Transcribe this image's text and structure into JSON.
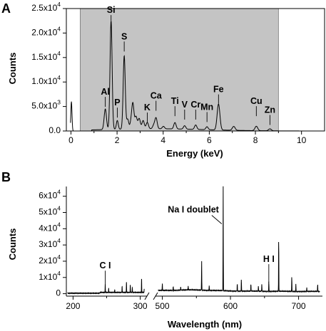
{
  "chart_data": [
    {
      "type": "line",
      "panel_label": "A",
      "xlabel": "Energy (keV)",
      "ylabel": "Counts",
      "xlim": [
        -0.2,
        11
      ],
      "ylim": [
        0,
        25000
      ],
      "x_ticks": [
        0,
        2,
        4,
        6,
        8,
        10
      ],
      "y_ticks": [
        {
          "value": 0,
          "label": "0.0"
        },
        {
          "value": 5000,
          "label": "5.0x10",
          "exp": "3"
        },
        {
          "value": 10000,
          "label": "1.0x10",
          "exp": "4"
        },
        {
          "value": 15000,
          "label": "1.5x10",
          "exp": "4"
        },
        {
          "value": 20000,
          "label": "2.0x10",
          "exp": "4"
        },
        {
          "value": 25000,
          "label": "2.5x10",
          "exp": "4"
        }
      ],
      "shaded_region": {
        "x0": 0.4,
        "x1": 9.0,
        "color": "#c4c4c4"
      },
      "grid": false,
      "peaks": [
        {
          "x": 0.02,
          "y": 6000,
          "w": 0.025,
          "label": ""
        },
        {
          "x": 1.49,
          "y": 4200,
          "w": 0.05,
          "label": "Al",
          "label_y": 7400
        },
        {
          "x": 1.74,
          "y": 22200,
          "w": 0.045,
          "label": "Si",
          "label_y": 24100
        },
        {
          "x": 2.01,
          "y": 1800,
          "w": 0.04,
          "label": "P",
          "label_y": 5200
        },
        {
          "x": 2.31,
          "y": 15000,
          "w": 0.045,
          "label": "S",
          "label_y": 18700
        },
        {
          "x": 2.46,
          "y": 2000,
          "w": 0.045,
          "label": ""
        },
        {
          "x": 2.62,
          "y": 1800,
          "w": 0.05,
          "label": ""
        },
        {
          "x": 2.69,
          "y": 4600,
          "w": 0.045,
          "label": ""
        },
        {
          "x": 2.82,
          "y": 2500,
          "w": 0.05,
          "label": ""
        },
        {
          "x": 2.96,
          "y": 2100,
          "w": 0.05,
          "label": ""
        },
        {
          "x": 3.13,
          "y": 1700,
          "w": 0.05,
          "label": ""
        },
        {
          "x": 3.31,
          "y": 1300,
          "w": 0.05,
          "label": "K",
          "label_y": 4200
        },
        {
          "x": 3.59,
          "y": 700,
          "w": 0.05,
          "label": ""
        },
        {
          "x": 3.69,
          "y": 2200,
          "w": 0.05,
          "label": "Ca",
          "label_y": 6600
        },
        {
          "x": 4.01,
          "y": 500,
          "w": 0.05,
          "label": ""
        },
        {
          "x": 4.51,
          "y": 1300,
          "w": 0.05,
          "label": "Ti",
          "label_y": 5500
        },
        {
          "x": 4.93,
          "y": 700,
          "w": 0.05,
          "label": "V",
          "label_y": 4800
        },
        {
          "x": 5.41,
          "y": 900,
          "w": 0.05,
          "label": "Cr",
          "label_y": 4800
        },
        {
          "x": 5.9,
          "y": 600,
          "w": 0.05,
          "label": "Mn",
          "label_y": 4300
        },
        {
          "x": 6.4,
          "y": 5300,
          "w": 0.06,
          "label": "Fe",
          "label_y": 7900
        },
        {
          "x": 7.06,
          "y": 800,
          "w": 0.06,
          "label": ""
        },
        {
          "x": 8.04,
          "y": 900,
          "w": 0.06,
          "label": "Cu",
          "label_y": 5500
        },
        {
          "x": 8.63,
          "y": 400,
          "w": 0.06,
          "label": "Zn",
          "label_y": 3700
        }
      ]
    },
    {
      "type": "line",
      "panel_label": "B",
      "xlabel": "Wavelength (nm)",
      "ylabel": "Counts",
      "broken_x_axis": true,
      "segment_left": {
        "xlim": [
          190,
          310
        ],
        "x_ticks": [
          200,
          300
        ]
      },
      "segment_right": {
        "xlim": [
          490,
          735
        ],
        "x_ticks": [
          500,
          600,
          700
        ]
      },
      "ylim": [
        -1500,
        66000
      ],
      "y_ticks": [
        {
          "value": 0,
          "label": "0"
        },
        {
          "value": 10000,
          "label": "1x10",
          "exp": "4"
        },
        {
          "value": 20000,
          "label": "2x10",
          "exp": "4"
        },
        {
          "value": 30000,
          "label": "3x10",
          "exp": "4"
        },
        {
          "value": 40000,
          "label": "4x10",
          "exp": "4"
        },
        {
          "value": 50000,
          "label": "5x10",
          "exp": "4"
        },
        {
          "value": 60000,
          "label": "6x10",
          "exp": "4"
        }
      ],
      "grid": false,
      "lines": [
        {
          "x": 247.9,
          "y": 5200,
          "label": "C I",
          "label_y": 15500
        },
        {
          "x": 253.0,
          "y": 2500,
          "label": ""
        },
        {
          "x": 262.0,
          "y": 1800,
          "label": ""
        },
        {
          "x": 273.0,
          "y": 3500,
          "label": ""
        },
        {
          "x": 279.5,
          "y": 6500,
          "label": ""
        },
        {
          "x": 285.2,
          "y": 4500,
          "label": ""
        },
        {
          "x": 288.2,
          "y": 3200,
          "label": ""
        },
        {
          "x": 302.0,
          "y": 8500,
          "label": ""
        },
        {
          "x": 306.0,
          "y": 2200,
          "label": ""
        },
        {
          "x": 500.0,
          "y": 4500,
          "label": ""
        },
        {
          "x": 516.0,
          "y": 2500,
          "label": ""
        },
        {
          "x": 527.0,
          "y": 2000,
          "label": ""
        },
        {
          "x": 538.0,
          "y": 2500,
          "label": ""
        },
        {
          "x": 557.7,
          "y": 18000,
          "label": ""
        },
        {
          "x": 568.8,
          "y": 3000,
          "label": ""
        },
        {
          "x": 589.3,
          "y": 65000,
          "label": "Na I doublet",
          "label_y": 50000
        },
        {
          "x": 610.0,
          "y": 5000,
          "label": ""
        },
        {
          "x": 616.0,
          "y": 7500,
          "label": ""
        },
        {
          "x": 630.0,
          "y": 5000,
          "label": ""
        },
        {
          "x": 641.0,
          "y": 3500,
          "label": ""
        },
        {
          "x": 646.0,
          "y": 4500,
          "label": ""
        },
        {
          "x": 656.3,
          "y": 6500,
          "label": "H I",
          "label_y": 19500
        },
        {
          "x": 670.8,
          "y": 35500,
          "label": ""
        },
        {
          "x": 690.0,
          "y": 9500,
          "label": ""
        },
        {
          "x": 696.0,
          "y": 4500,
          "label": ""
        },
        {
          "x": 712.0,
          "y": 2500,
          "label": ""
        },
        {
          "x": 728.0,
          "y": 5000,
          "label": ""
        }
      ]
    }
  ]
}
